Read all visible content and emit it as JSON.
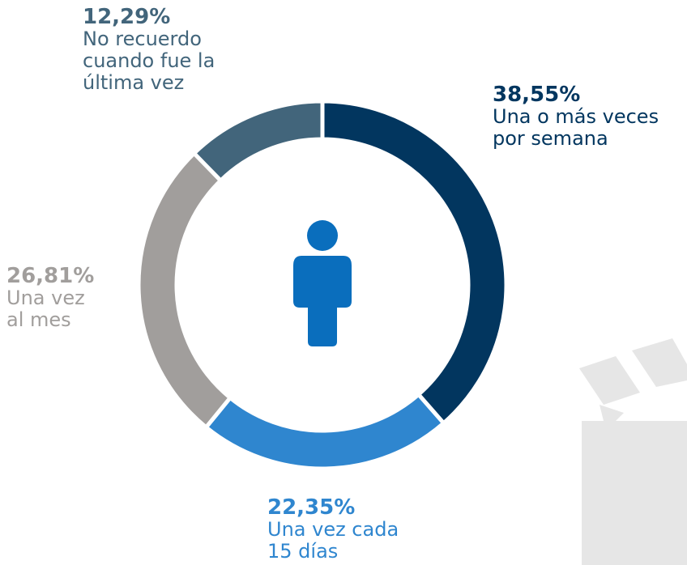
{
  "chart_data": {
    "type": "donut",
    "categories": [
      "Una o más veces por semana",
      "Una vez cada 15 días",
      "Una vez al mes",
      "No recuerdo cuando fue la última vez"
    ],
    "values": [
      38.55,
      22.35,
      26.81,
      12.29
    ],
    "value_labels": [
      "38,55%",
      "22,35%",
      "26,81%",
      "12,29%"
    ],
    "colors": [
      "#02365f",
      "#2f86cf",
      "#a19e9c",
      "#42657b"
    ]
  }
}
